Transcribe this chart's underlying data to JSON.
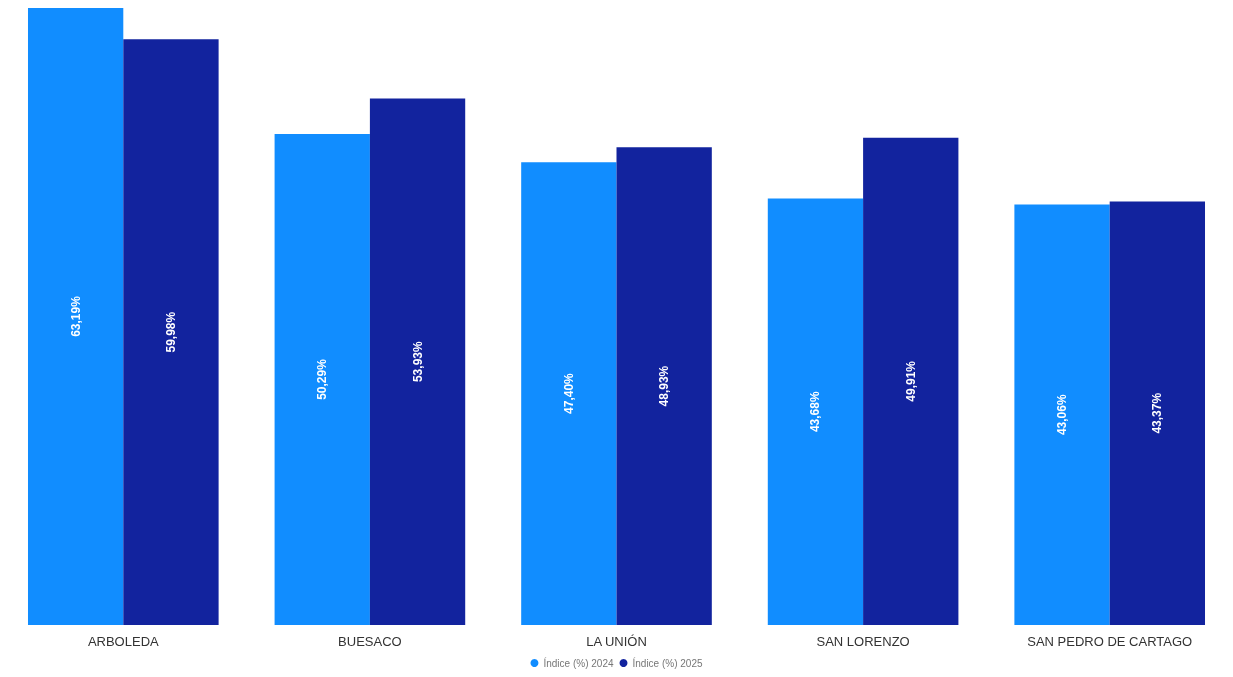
{
  "chart_data": {
    "type": "bar",
    "categories": [
      "ARBOLEDA",
      "BUESACO",
      "LA UNIÓN",
      "SAN LORENZO",
      "SAN PEDRO DE CARTAGO"
    ],
    "series": [
      {
        "name": "Índice (%) 2024",
        "color": "#118dff",
        "values": [
          63.19,
          50.29,
          47.4,
          43.68,
          43.06
        ],
        "value_labels": [
          "63,19%",
          "50,29%",
          "47,40%",
          "43,68%",
          "43,06%"
        ]
      },
      {
        "name": "Índice (%) 2025",
        "color": "#12239e",
        "values": [
          59.98,
          53.93,
          48.93,
          49.91,
          43.37
        ],
        "value_labels": [
          "59,98%",
          "53,93%",
          "48,93%",
          "49,91%",
          "43,37%"
        ]
      }
    ],
    "legend": "bottom"
  }
}
